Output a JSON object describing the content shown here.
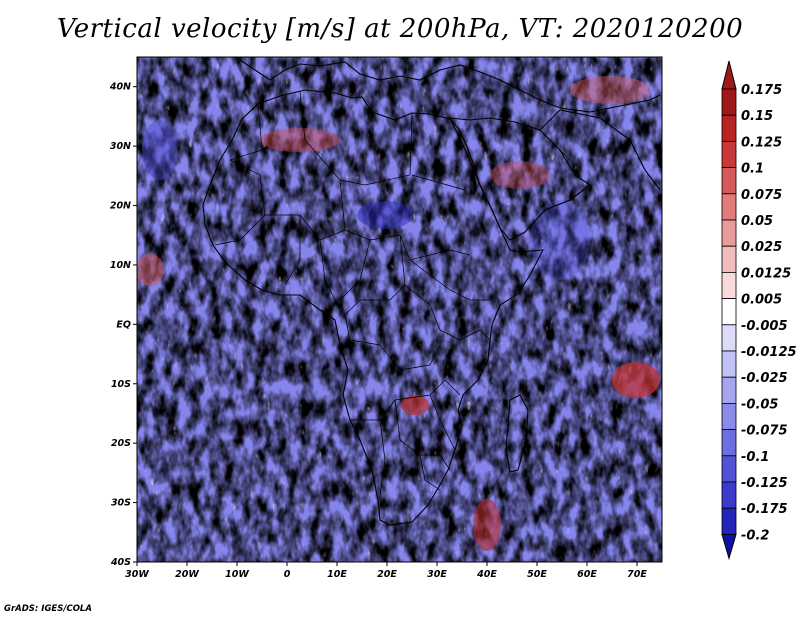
{
  "title": "Vertical velocity [m/s] at 200hPa, VT: 2020120200",
  "credit": "GrADS: IGES/COLA",
  "map": {
    "field": "Vertical velocity",
    "units": "m/s",
    "level": "200hPa",
    "valid_time": "2020120200",
    "extent": {
      "lon_min": -30,
      "lon_max": 75,
      "lat_min": -40,
      "lat_max": 45
    },
    "lon_ticks": [
      {
        "value": -30,
        "label": "30W"
      },
      {
        "value": -20,
        "label": "20W"
      },
      {
        "value": -10,
        "label": "10W"
      },
      {
        "value": 0,
        "label": "0"
      },
      {
        "value": 10,
        "label": "10E"
      },
      {
        "value": 20,
        "label": "20E"
      },
      {
        "value": 30,
        "label": "30E"
      },
      {
        "value": 40,
        "label": "40E"
      },
      {
        "value": 50,
        "label": "50E"
      },
      {
        "value": 60,
        "label": "60E"
      },
      {
        "value": 70,
        "label": "70E"
      }
    ],
    "lat_ticks": [
      {
        "value": 40,
        "label": "40N"
      },
      {
        "value": 30,
        "label": "30N"
      },
      {
        "value": 20,
        "label": "20N"
      },
      {
        "value": 10,
        "label": "10N"
      },
      {
        "value": 0,
        "label": "EQ"
      },
      {
        "value": -10,
        "label": "10S"
      },
      {
        "value": -20,
        "label": "20S"
      },
      {
        "value": -30,
        "label": "30S"
      },
      {
        "value": -40,
        "label": "40S"
      }
    ],
    "positive_color": "#e06666",
    "negative_color": "#6f6fe8"
  },
  "colorbar": {
    "levels": [
      "0.175",
      "0.15",
      "0.125",
      "0.1",
      "0.075",
      "0.05",
      "0.025",
      "0.0125",
      "0.005",
      "-0.005",
      "-0.0125",
      "-0.025",
      "-0.05",
      "-0.075",
      "-0.1",
      "-0.125",
      "-0.175",
      "-0.2"
    ],
    "colors": [
      "#a01818",
      "#b82424",
      "#c83a3a",
      "#d65a5a",
      "#e07c7c",
      "#e99c9c",
      "#f1bcbc",
      "#f8dada",
      "#ffffff",
      "#dcdcfa",
      "#c2c2f4",
      "#a6a6ee",
      "#8a8ae8",
      "#6e6ee0",
      "#5252d6",
      "#3a3acc",
      "#2424b8",
      "#1010a4"
    ]
  }
}
